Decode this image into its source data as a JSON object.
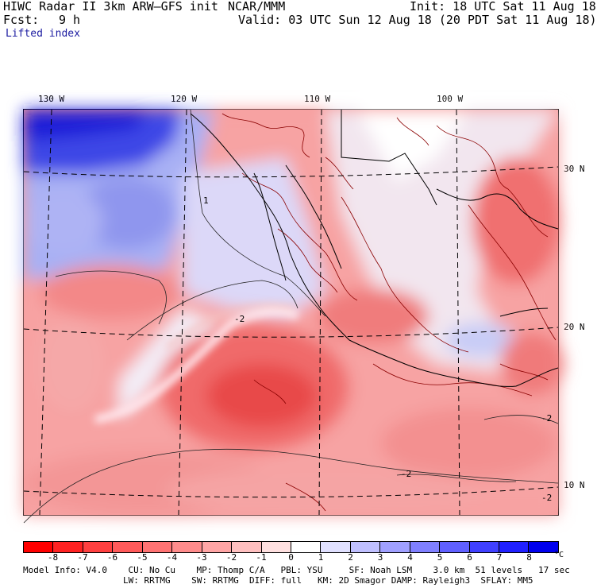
{
  "header": {
    "model_line": "HIWC Radar II 3km ARW–GFS init",
    "org": "NCAR/MMM",
    "init": "Init: 18 UTC Sat 11 Aug 18",
    "fcst_label": "Fcst:",
    "fcst_value": "9 h",
    "valid": "Valid: 03 UTC Sun 12 Aug 18 (20 PDT Sat 11 Aug 18)",
    "field": "Lifted index"
  },
  "map": {
    "longitude_labels": [
      "130 W",
      "120 W",
      "110 W",
      "100 W"
    ],
    "latitude_labels": [
      "30 N",
      "20 N",
      "10 N"
    ],
    "contour_labels": [
      "1",
      "-2",
      "-2",
      "-2",
      "-2"
    ]
  },
  "colorbar": {
    "tick_labels": [
      "-8",
      "-7",
      "-6",
      "-5",
      "-4",
      "-3",
      "-2",
      "-1",
      "0",
      "1",
      "2",
      "3",
      "4",
      "5",
      "6",
      "7",
      "8"
    ],
    "unit": "°C",
    "colors": [
      "#ff0000",
      "#ff2222",
      "#ff4040",
      "#ff5a5a",
      "#ff7373",
      "#ff8c8c",
      "#ffa5a5",
      "#ffc0c0",
      "#ffe0e0",
      "#ffffff",
      "#e0e0ff",
      "#c0c0ff",
      "#a0a0ff",
      "#8080ff",
      "#6060ff",
      "#4040ff",
      "#2020ff",
      "#0000ee"
    ]
  },
  "footer": {
    "line1": "Model Info: V4.0    CU: No Cu    MP: Thomp C/A   PBL: YSU     SF: Noah LSM    3.0 km  51 levels   17 sec",
    "line2": "LW: RRTMG    SW: RRTMG  DIFF: full   KM: 2D Smagor DAMP: Rayleigh3  SFLAY: MM5"
  }
}
